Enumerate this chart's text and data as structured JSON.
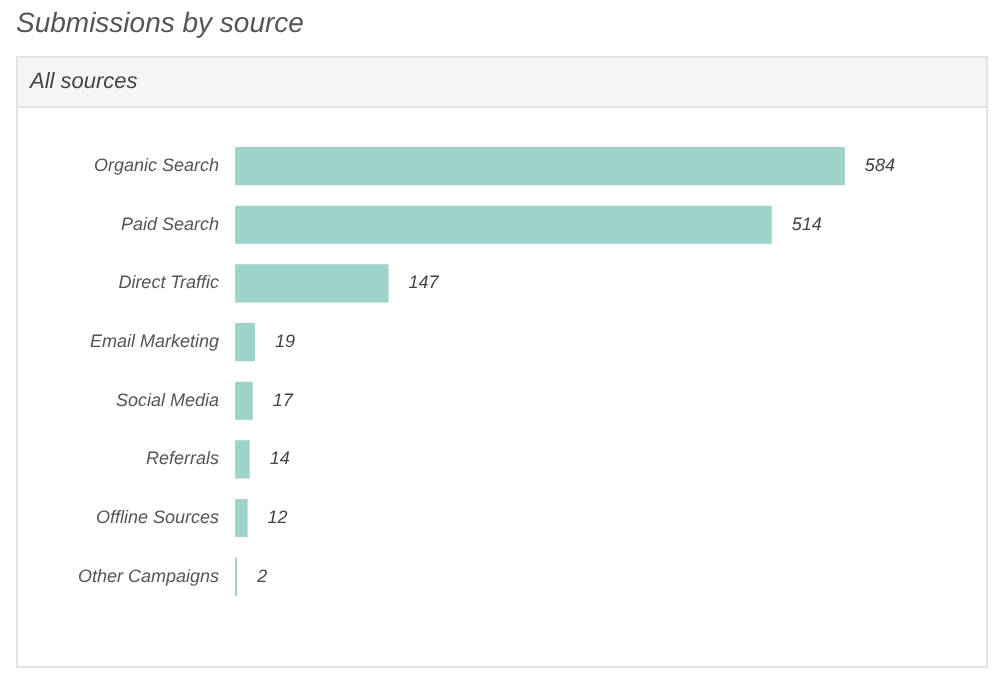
{
  "chart_data": {
    "type": "bar",
    "orientation": "horizontal",
    "title": "Submissions by source",
    "subtitle": "All sources",
    "categories": [
      "Organic Search",
      "Paid Search",
      "Direct Traffic",
      "Email Marketing",
      "Social Media",
      "Referrals",
      "Offline Sources",
      "Other Campaigns"
    ],
    "values": [
      584,
      514,
      147,
      19,
      17,
      14,
      12,
      2
    ],
    "color": "#9dd3c9",
    "data_labels": true,
    "grid": false,
    "legend": false,
    "tick_labels": "y"
  }
}
